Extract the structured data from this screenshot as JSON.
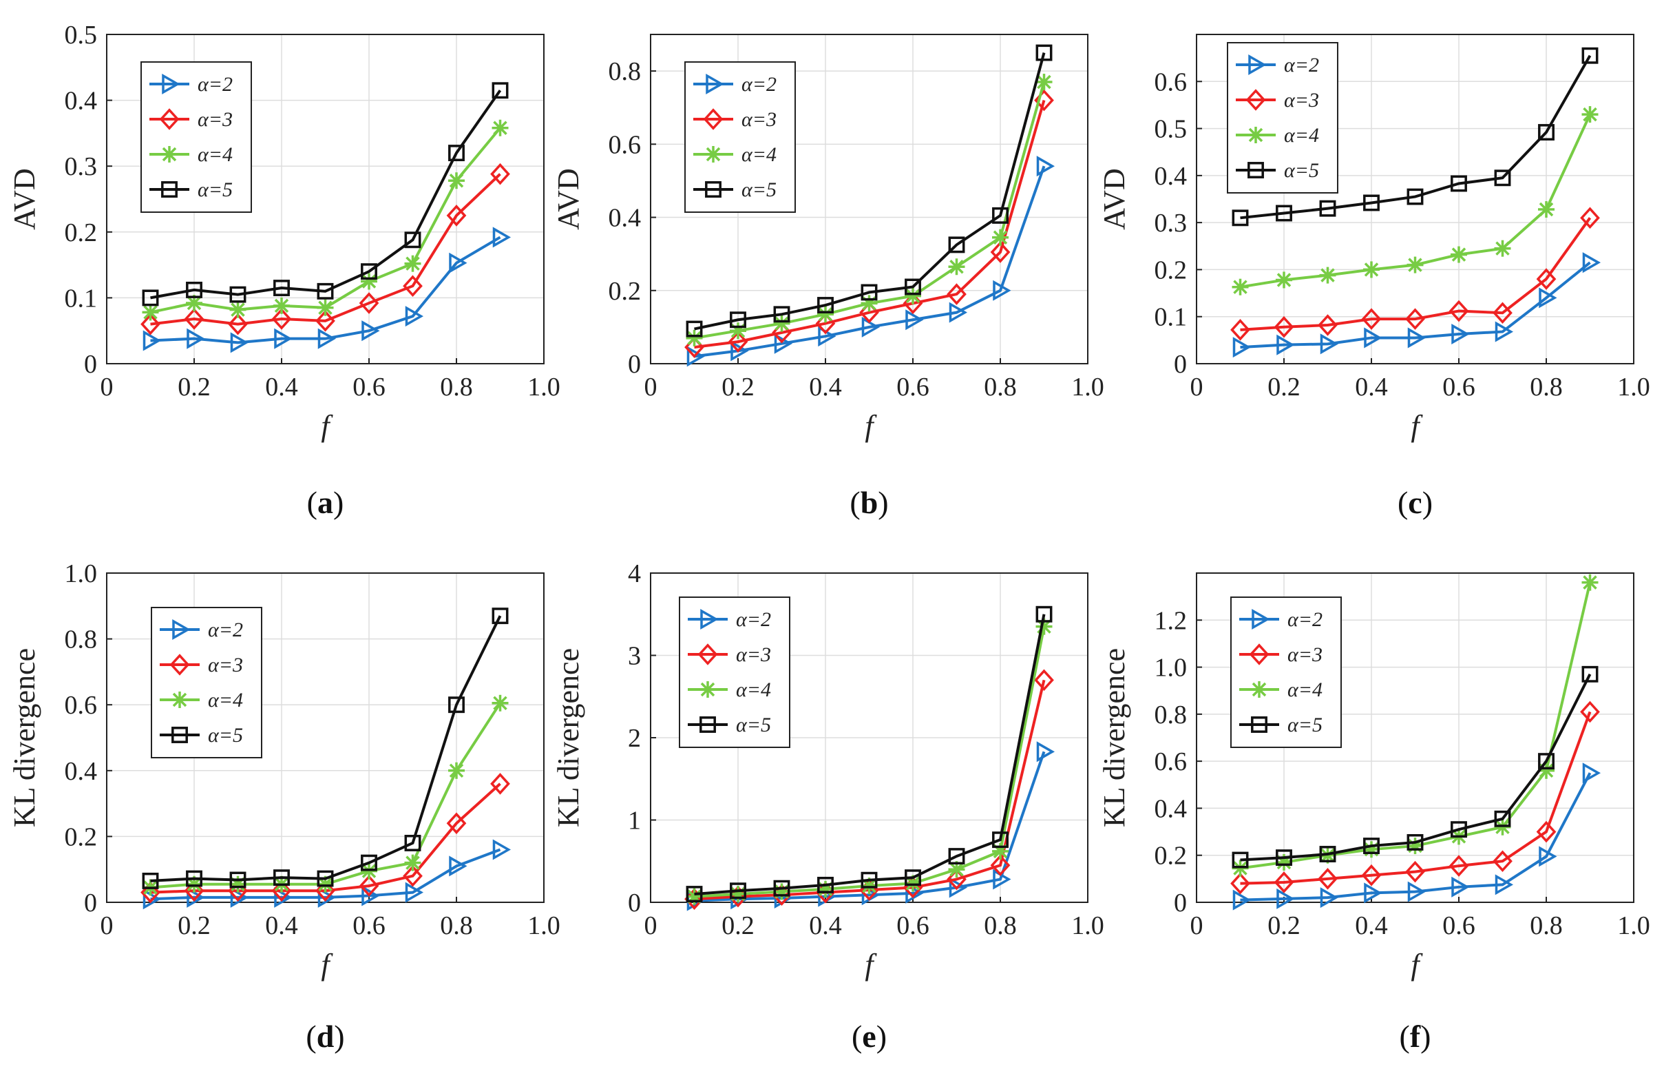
{
  "chart_data": [
    {
      "type": "line",
      "caption_letter": "a",
      "xlabel": "f",
      "ylabel": "AVD",
      "x": [
        0.1,
        0.2,
        0.3,
        0.4,
        0.5,
        0.6,
        0.7,
        0.8,
        0.9
      ],
      "xlim": [
        0,
        1.0
      ],
      "xticks": [
        "0",
        "0.2",
        "0.4",
        "0.6",
        "0.8",
        "1.0"
      ],
      "ylim": [
        0,
        0.5
      ],
      "yticks": [
        "0",
        "0.1",
        "0.2",
        "0.3",
        "0.4",
        "0.5"
      ],
      "grid": true,
      "legend_position": "top-left",
      "series": [
        {
          "name": "α=2",
          "values": [
            0.035,
            0.038,
            0.032,
            0.038,
            0.038,
            0.05,
            0.072,
            0.153,
            0.192
          ]
        },
        {
          "name": "α=3",
          "values": [
            0.06,
            0.068,
            0.06,
            0.068,
            0.065,
            0.092,
            0.118,
            0.225,
            0.288
          ]
        },
        {
          "name": "α=4",
          "values": [
            0.078,
            0.092,
            0.082,
            0.088,
            0.085,
            0.125,
            0.152,
            0.278,
            0.358
          ]
        },
        {
          "name": "α=5",
          "values": [
            0.1,
            0.112,
            0.105,
            0.115,
            0.11,
            0.14,
            0.188,
            0.32,
            0.415
          ]
        }
      ]
    },
    {
      "type": "line",
      "caption_letter": "b",
      "xlabel": "f",
      "ylabel": "AVD",
      "x": [
        0.1,
        0.2,
        0.3,
        0.4,
        0.5,
        0.6,
        0.7,
        0.8,
        0.9
      ],
      "xlim": [
        0,
        1.0
      ],
      "xticks": [
        "0",
        "0.2",
        "0.4",
        "0.6",
        "0.8",
        "1.0"
      ],
      "ylim": [
        0,
        0.9
      ],
      "yticks": [
        "0",
        "0.2",
        "0.4",
        "0.6",
        "0.8"
      ],
      "grid": true,
      "legend_position": "top-left",
      "series": [
        {
          "name": "α=2",
          "values": [
            0.02,
            0.035,
            0.055,
            0.075,
            0.1,
            0.12,
            0.14,
            0.2,
            0.54
          ]
        },
        {
          "name": "α=3",
          "values": [
            0.045,
            0.06,
            0.085,
            0.11,
            0.14,
            0.165,
            0.19,
            0.305,
            0.72
          ]
        },
        {
          "name": "α=4",
          "values": [
            0.07,
            0.09,
            0.11,
            0.135,
            0.165,
            0.185,
            0.265,
            0.345,
            0.77
          ]
        },
        {
          "name": "α=5",
          "values": [
            0.095,
            0.12,
            0.135,
            0.16,
            0.195,
            0.21,
            0.325,
            0.405,
            0.85
          ]
        }
      ]
    },
    {
      "type": "line",
      "caption_letter": "c",
      "xlabel": "f",
      "ylabel": "AVD",
      "x": [
        0.1,
        0.2,
        0.3,
        0.4,
        0.5,
        0.6,
        0.7,
        0.8,
        0.9
      ],
      "xlim": [
        0,
        1.0
      ],
      "xticks": [
        "0",
        "0.2",
        "0.4",
        "0.6",
        "0.8",
        "1.0"
      ],
      "ylim": [
        0,
        0.7
      ],
      "yticks": [
        "0",
        "0.1",
        "0.2",
        "0.3",
        "0.4",
        "0.5",
        "0.6"
      ],
      "grid": true,
      "legend_position": "top-left",
      "series": [
        {
          "name": "α=2",
          "values": [
            0.035,
            0.04,
            0.042,
            0.055,
            0.055,
            0.063,
            0.068,
            0.14,
            0.215
          ]
        },
        {
          "name": "α=3",
          "values": [
            0.072,
            0.078,
            0.082,
            0.095,
            0.095,
            0.112,
            0.108,
            0.18,
            0.31
          ]
        },
        {
          "name": "α=4",
          "values": [
            0.163,
            0.178,
            0.188,
            0.2,
            0.21,
            0.232,
            0.245,
            0.328,
            0.53
          ]
        },
        {
          "name": "α=5",
          "values": [
            0.31,
            0.32,
            0.33,
            0.342,
            0.355,
            0.383,
            0.395,
            0.492,
            0.655
          ]
        }
      ]
    },
    {
      "type": "line",
      "caption_letter": "d",
      "xlabel": "f",
      "ylabel": "KL divergence",
      "x": [
        0.1,
        0.2,
        0.3,
        0.4,
        0.5,
        0.6,
        0.7,
        0.8,
        0.9
      ],
      "xlim": [
        0,
        1.0
      ],
      "xticks": [
        "0",
        "0.2",
        "0.4",
        "0.6",
        "0.8",
        "1.0"
      ],
      "ylim": [
        0,
        1.0
      ],
      "yticks": [
        "0",
        "0.2",
        "0.4",
        "0.6",
        "0.8",
        "1.0"
      ],
      "grid": true,
      "legend_position": "top-left",
      "series": [
        {
          "name": "α=2",
          "values": [
            0.01,
            0.015,
            0.015,
            0.015,
            0.015,
            0.02,
            0.03,
            0.11,
            0.16
          ]
        },
        {
          "name": "α=3",
          "values": [
            0.03,
            0.035,
            0.035,
            0.035,
            0.035,
            0.05,
            0.08,
            0.24,
            0.36
          ]
        },
        {
          "name": "α=4",
          "values": [
            0.045,
            0.055,
            0.055,
            0.055,
            0.055,
            0.095,
            0.12,
            0.4,
            0.605
          ]
        },
        {
          "name": "α=5",
          "values": [
            0.065,
            0.072,
            0.068,
            0.075,
            0.072,
            0.12,
            0.18,
            0.6,
            0.87
          ]
        }
      ]
    },
    {
      "type": "line",
      "caption_letter": "e",
      "xlabel": "f",
      "ylabel": "KL divergence",
      "x": [
        0.1,
        0.2,
        0.3,
        0.4,
        0.5,
        0.6,
        0.7,
        0.8,
        0.9
      ],
      "xlim": [
        0,
        1.0
      ],
      "xticks": [
        "0",
        "0.2",
        "0.4",
        "0.6",
        "0.8",
        "1.0"
      ],
      "ylim": [
        0,
        4
      ],
      "yticks": [
        "0",
        "1",
        "2",
        "3",
        "4"
      ],
      "grid": true,
      "legend_position": "top-left",
      "series": [
        {
          "name": "α=2",
          "values": [
            0.02,
            0.04,
            0.05,
            0.07,
            0.09,
            0.11,
            0.18,
            0.28,
            1.83
          ]
        },
        {
          "name": "α=3",
          "values": [
            0.04,
            0.07,
            0.09,
            0.12,
            0.15,
            0.18,
            0.28,
            0.45,
            2.7
          ]
        },
        {
          "name": "α=4",
          "values": [
            0.07,
            0.1,
            0.13,
            0.16,
            0.2,
            0.23,
            0.4,
            0.62,
            3.35
          ]
        },
        {
          "name": "α=5",
          "values": [
            0.1,
            0.14,
            0.17,
            0.21,
            0.27,
            0.3,
            0.56,
            0.76,
            3.5
          ]
        }
      ]
    },
    {
      "type": "line",
      "caption_letter": "f",
      "xlabel": "f",
      "ylabel": "KL divergence",
      "x": [
        0.1,
        0.2,
        0.3,
        0.4,
        0.5,
        0.6,
        0.7,
        0.8,
        0.9
      ],
      "xlim": [
        0,
        1.0
      ],
      "xticks": [
        "0",
        "0.2",
        "0.4",
        "0.6",
        "0.8",
        "1.0"
      ],
      "ylim": [
        0,
        1.4
      ],
      "yticks": [
        "0",
        "0.2",
        "0.4",
        "0.6",
        "0.8",
        "1.0",
        "1.2"
      ],
      "grid": true,
      "legend_position": "top-left",
      "series": [
        {
          "name": "α=2",
          "values": [
            0.01,
            0.015,
            0.02,
            0.04,
            0.045,
            0.065,
            0.075,
            0.195,
            0.55
          ]
        },
        {
          "name": "α=3",
          "values": [
            0.08,
            0.085,
            0.1,
            0.115,
            0.13,
            0.155,
            0.175,
            0.3,
            0.81
          ]
        },
        {
          "name": "α=4",
          "values": [
            0.145,
            0.17,
            0.2,
            0.225,
            0.24,
            0.28,
            0.32,
            0.56,
            1.36
          ]
        },
        {
          "name": "α=5",
          "values": [
            0.18,
            0.19,
            0.205,
            0.24,
            0.255,
            0.31,
            0.355,
            0.6,
            0.97
          ]
        }
      ]
    }
  ],
  "colors": {
    "series": [
      "#1f77c8",
      "#ee2222",
      "#77cc44",
      "#111111"
    ],
    "grid": "#dddddd",
    "axis": "#222222"
  },
  "markers": [
    "triangle-right-icon",
    "diamond-icon",
    "asterisk-icon",
    "square-icon"
  ]
}
